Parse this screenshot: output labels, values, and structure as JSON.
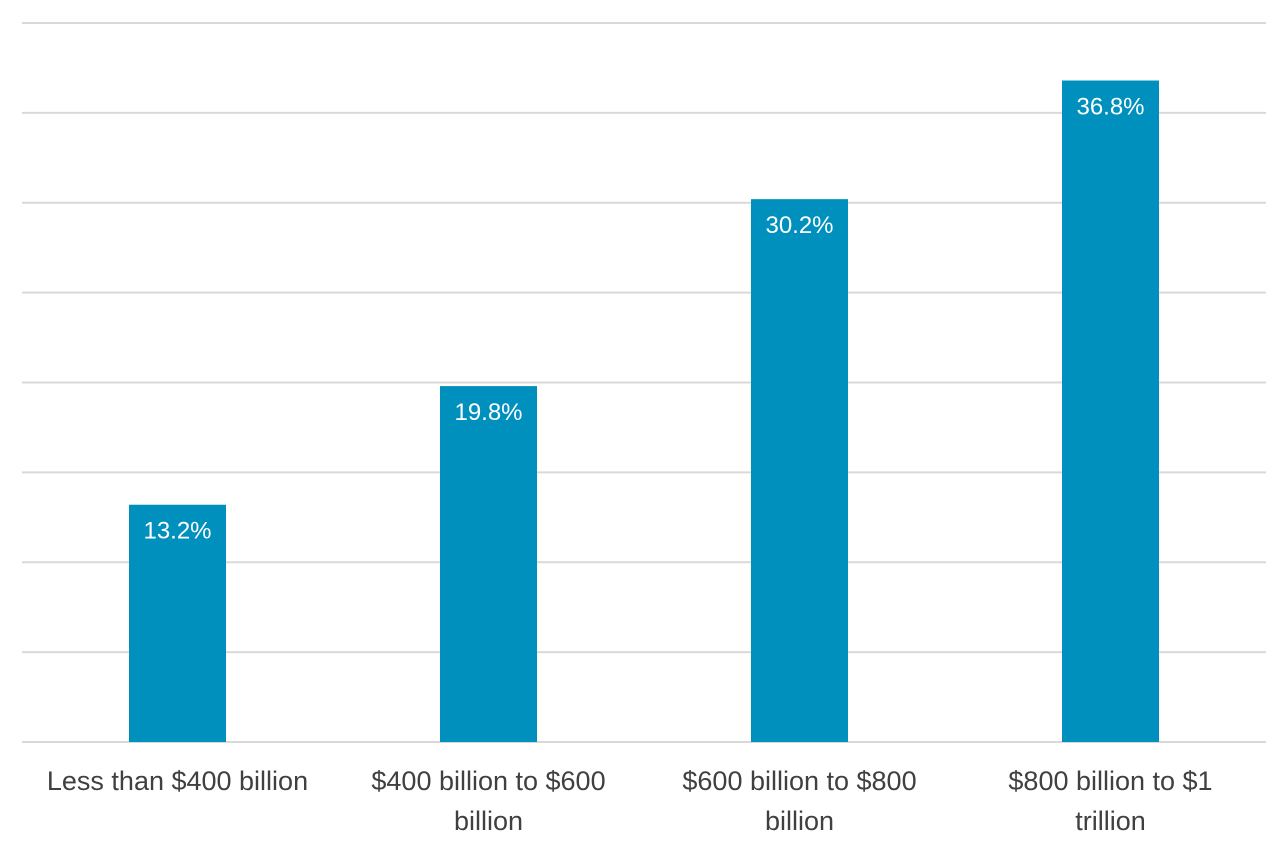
{
  "chart_data": {
    "type": "bar",
    "categories": [
      [
        "Less than $400 billion"
      ],
      [
        "$400 billion to $600",
        "billion"
      ],
      [
        "$600 billion to $800",
        "billion"
      ],
      [
        "$800 billion to $1",
        "trillion"
      ]
    ],
    "values": [
      13.2,
      19.8,
      30.2,
      36.8
    ],
    "data_labels": [
      "13.2%",
      "19.8%",
      "30.2%",
      "36.8%"
    ],
    "ylim": [
      0,
      40
    ],
    "grid": true,
    "bar_color": "#0090bd"
  }
}
